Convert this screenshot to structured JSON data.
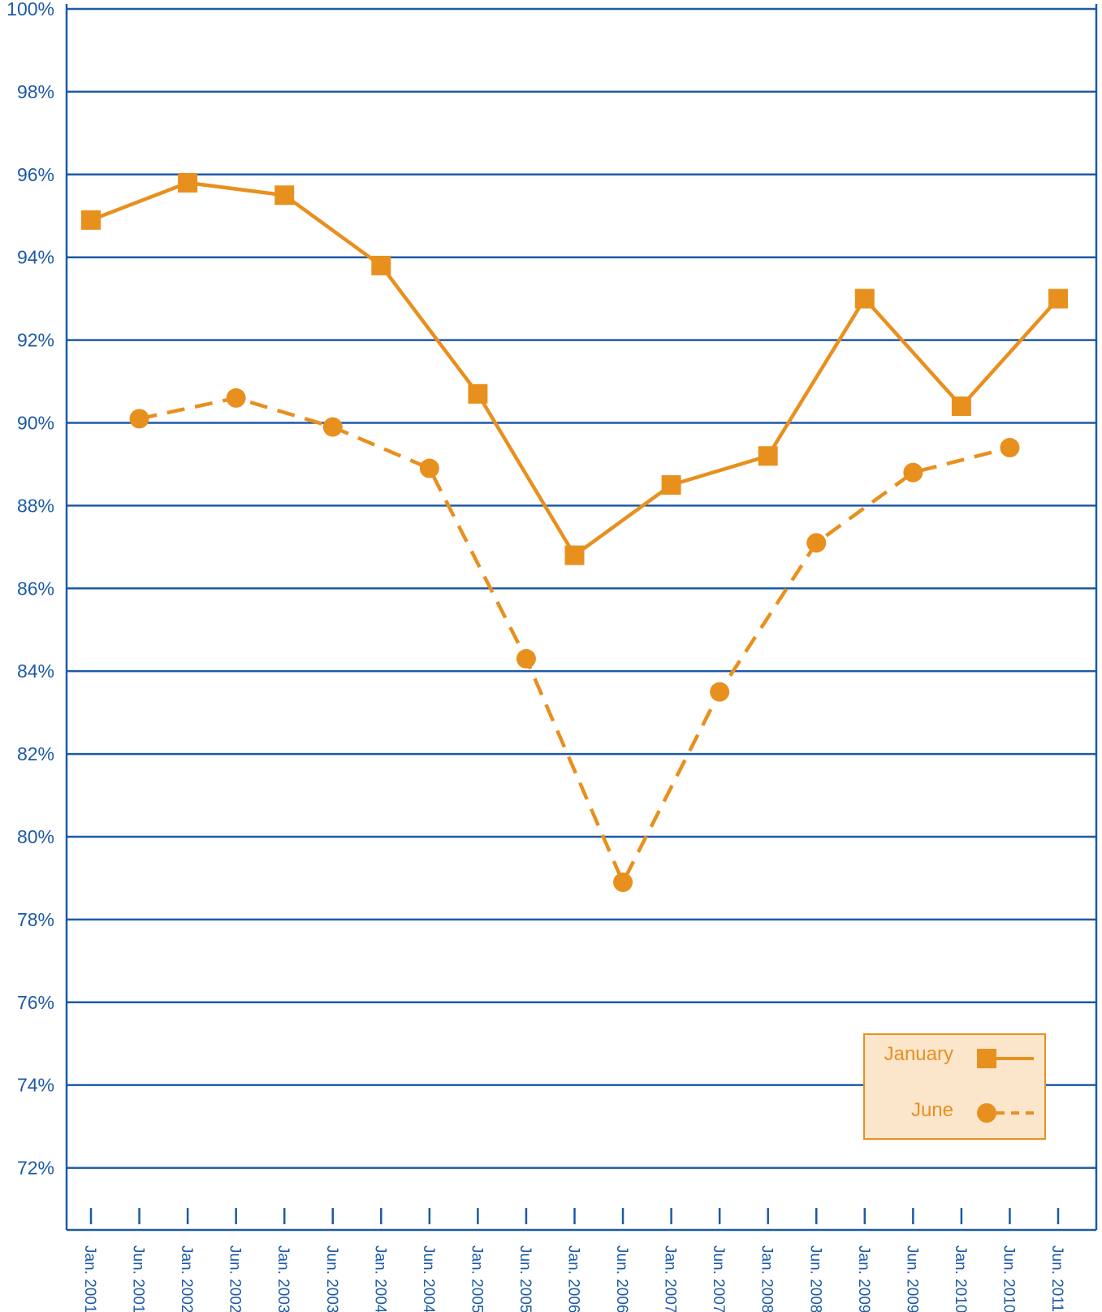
{
  "chart_data": {
    "type": "line",
    "title": "",
    "xlabel": "",
    "ylabel": "",
    "ylim": [
      70.5,
      100
    ],
    "yticks": [
      "72%",
      "74%",
      "76%",
      "78%",
      "80%",
      "82%",
      "84%",
      "86%",
      "88%",
      "90%",
      "92%",
      "94%",
      "96%",
      "98%",
      "100%"
    ],
    "ytick_values": [
      72,
      74,
      76,
      78,
      80,
      82,
      84,
      86,
      88,
      90,
      92,
      94,
      96,
      98,
      100
    ],
    "categories": [
      "Jan. 2001",
      "Jun. 2001",
      "Jan. 2002",
      "Jun. 2002",
      "Jan. 2003",
      "Jun. 2003",
      "Jan. 2004",
      "Jun. 2004",
      "Jan. 2005",
      "Jun. 2005",
      "Jan. 2006",
      "Jun. 2006",
      "Jan. 2007",
      "Jun. 2007",
      "Jan. 2008",
      "Jun. 2008",
      "Jan. 2009",
      "Jun. 2009",
      "Jan. 2010",
      "Jun. 2010",
      "Jun. 2011"
    ],
    "series": [
      {
        "name": "January",
        "style": "solid",
        "marker": "square",
        "points": [
          {
            "x": "Jan. 2001",
            "y": 94.9
          },
          {
            "x": "Jan. 2002",
            "y": 95.8
          },
          {
            "x": "Jan. 2003",
            "y": 95.5
          },
          {
            "x": "Jan. 2004",
            "y": 93.8
          },
          {
            "x": "Jan. 2005",
            "y": 90.7
          },
          {
            "x": "Jan. 2006",
            "y": 86.8
          },
          {
            "x": "Jan. 2007",
            "y": 88.5
          },
          {
            "x": "Jan. 2008",
            "y": 89.2
          },
          {
            "x": "Jan. 2009",
            "y": 93.0
          },
          {
            "x": "Jan. 2010",
            "y": 90.4
          },
          {
            "x": "Jun. 2011",
            "y": 93.0
          }
        ]
      },
      {
        "name": "June",
        "style": "dashed",
        "marker": "circle",
        "points": [
          {
            "x": "Jun. 2001",
            "y": 90.1
          },
          {
            "x": "Jun. 2002",
            "y": 90.6
          },
          {
            "x": "Jun. 2003",
            "y": 89.9
          },
          {
            "x": "Jun. 2004",
            "y": 88.9
          },
          {
            "x": "Jun. 2005",
            "y": 84.3
          },
          {
            "x": "Jun. 2006",
            "y": 78.9
          },
          {
            "x": "Jun. 2007",
            "y": 83.5
          },
          {
            "x": "Jun. 2008",
            "y": 87.1
          },
          {
            "x": "Jun. 2009",
            "y": 88.8
          },
          {
            "x": "Jun. 2010",
            "y": 89.4
          }
        ]
      }
    ],
    "grid": true,
    "legend_position": "bottom-right",
    "colors": {
      "axis": "#1d5aa6",
      "series": "#e8901e",
      "legend_bg": "#fbe6cc"
    }
  }
}
